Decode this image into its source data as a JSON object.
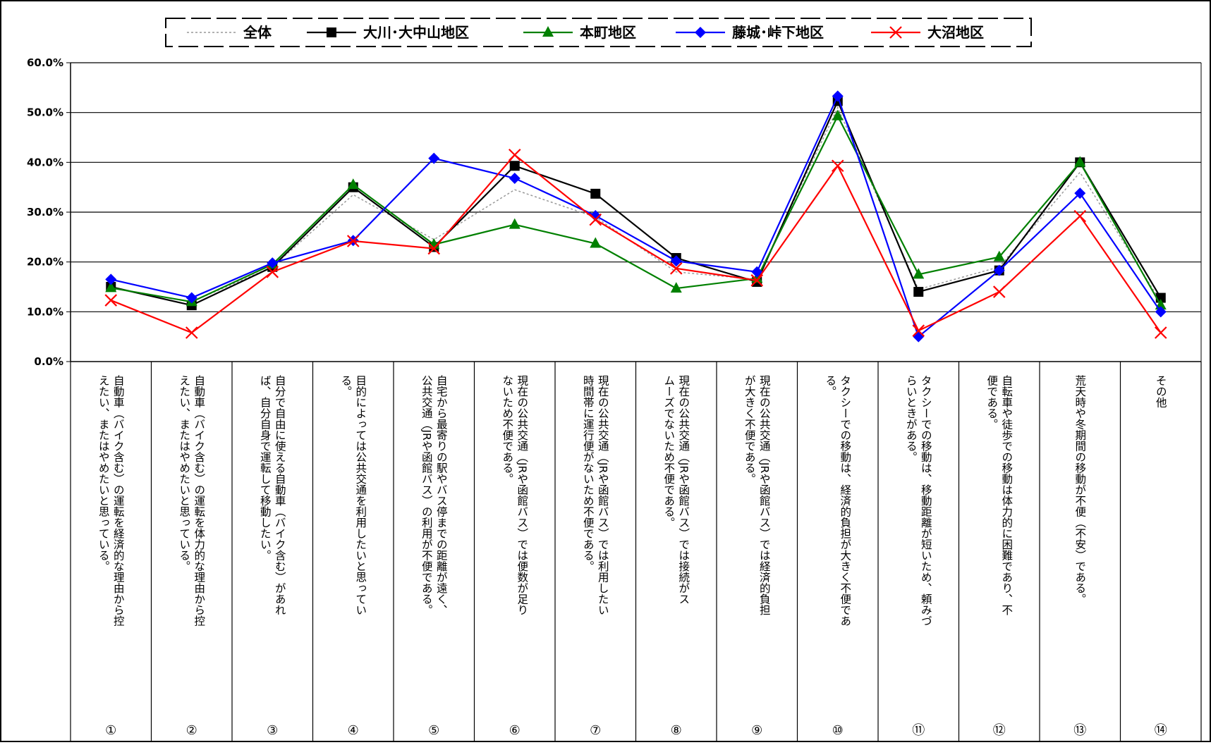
{
  "chart_data": {
    "type": "line",
    "ylim": [
      0,
      60
    ],
    "ytick_labels": [
      "0.0%",
      "10.0%",
      "20.0%",
      "30.0%",
      "40.0%",
      "50.0%",
      "60.0%"
    ],
    "grid": "horizontal",
    "legend_position": "top",
    "categories": [
      {
        "num": "①",
        "lines": [
          "自動車（バイク含む）の運転を経済的な理由から控",
          "えたい、またはやめたいと思っている。"
        ]
      },
      {
        "num": "②",
        "lines": [
          "自動車（バイク含む）の運転を体力的な理由から控",
          "えたい、またはやめたいと思っている。"
        ]
      },
      {
        "num": "③",
        "lines": [
          "自分で自由に使える自動車（バイク含む）があれ",
          "ば、自分自身で運転して移動したい。"
        ]
      },
      {
        "num": "④",
        "lines": [
          "目的によっては公共交通を利用したいと思ってい",
          "る。"
        ]
      },
      {
        "num": "⑤",
        "lines": [
          "自宅から最寄りの駅やバス停までの距離が遠く、",
          "公共交通（JRや函館バス）の利用が不便である。"
        ]
      },
      {
        "num": "⑥",
        "lines": [
          "現在の公共交通（JRや函館バス）では便数が足り",
          "ないため不便である。"
        ]
      },
      {
        "num": "⑦",
        "lines": [
          "現在の公共交通（JRや函館バス）では利用したい",
          "時間帯に運行便がないため不便である。"
        ]
      },
      {
        "num": "⑧",
        "lines": [
          "現在の公共交通（JRや函館バス）では接続がス",
          "ムーズでないため不便である。"
        ]
      },
      {
        "num": "⑨",
        "lines": [
          "現在の公共交通（JRや函館バス）では経済的負担",
          "が大きく不便である。"
        ]
      },
      {
        "num": "⑩",
        "lines": [
          "タクシーでの移動は、経済的負担が大きく不便であ",
          "る。"
        ]
      },
      {
        "num": "⑪",
        "lines": [
          "タクシーでの移動は、移動距離が短いため、頼みづ",
          "らいときがある。"
        ]
      },
      {
        "num": "⑫",
        "lines": [
          "自転車や徒歩での移動は体力的に困難であり、不",
          "便である。"
        ]
      },
      {
        "num": "⑬",
        "lines": [
          "荒天時や冬期間の移動が不便（不安）である。"
        ]
      },
      {
        "num": "⑭",
        "lines": [
          "その他"
        ]
      }
    ],
    "series": [
      {
        "name": "全体",
        "color": "#999999",
        "marker": "none",
        "style": "dotted",
        "values": [
          14.8,
          12.0,
          19.0,
          33.5,
          24.5,
          34.5,
          29.0,
          18.0,
          16.5,
          51.0,
          14.5,
          19.0,
          38.0,
          12.0
        ]
      },
      {
        "name": "大川･大中山地区",
        "color": "#000000",
        "marker": "square",
        "style": "solid",
        "values": [
          15.0,
          11.3,
          19.0,
          35.0,
          23.0,
          39.3,
          33.7,
          20.8,
          16.0,
          52.3,
          14.0,
          18.3,
          40.0,
          12.8
        ]
      },
      {
        "name": "本町地区",
        "color": "#008000",
        "marker": "triangle",
        "style": "solid",
        "values": [
          14.8,
          12.0,
          19.5,
          35.5,
          23.5,
          27.5,
          23.7,
          14.7,
          16.7,
          49.3,
          17.5,
          21.0,
          40.0,
          11.3
        ]
      },
      {
        "name": "藤城･峠下地区",
        "color": "#0000ff",
        "marker": "diamond",
        "style": "solid",
        "values": [
          16.5,
          12.8,
          19.8,
          24.3,
          40.8,
          36.8,
          29.3,
          20.2,
          18.0,
          53.3,
          5.0,
          18.3,
          33.8,
          10.0
        ]
      },
      {
        "name": "大沼地区",
        "color": "#ff0000",
        "marker": "x",
        "style": "solid",
        "values": [
          12.3,
          5.8,
          18.0,
          24.2,
          22.7,
          41.5,
          28.5,
          18.7,
          16.3,
          39.3,
          6.2,
          14.0,
          29.2,
          5.8
        ]
      }
    ]
  }
}
